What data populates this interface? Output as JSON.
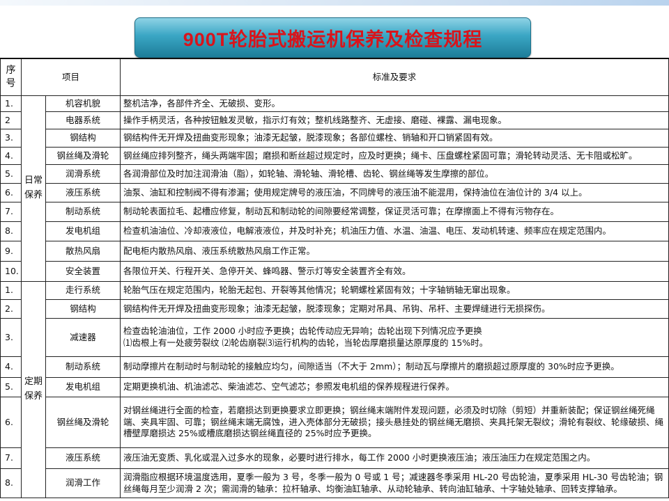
{
  "title": "900T轮胎式搬运机保养及检查规程",
  "header": {
    "seq": "序号",
    "item": "项目",
    "standard": "标准及要求"
  },
  "daily": {
    "category": "日常保养",
    "rows": [
      {
        "seq": "1.",
        "item": "机容机貌",
        "standard": "整机洁净，各部件齐全、无破损、变形。"
      },
      {
        "seq": "2",
        "item": "电器系统",
        "standard": "操作手柄灵活，各种按钮触发灵敏，指示灯有效；整机线路整齐、无虚接、磨碰、裸露、漏电现象。"
      },
      {
        "seq": "3.",
        "item": "钢结构",
        "standard": "钢结构件无开焊及扭曲变形现象；油漆无起皱，脱漆现象；各部位螺栓、销轴和开口销紧固有效。"
      },
      {
        "seq": "4.",
        "item": "钢丝绳及滑轮",
        "standard": "钢丝绳应排列整齐，绳头两端牢固；磨损和断丝超过规定时，应及时更换；绳卡、压盘螺栓紧固可靠；滑轮转动灵活、无卡阻或松旷。"
      },
      {
        "seq": "5.",
        "item": "润滑系统",
        "standard": "各润滑部位及时加注润滑油（脂），如轮轴、滑轮轴、滑轮槽、齿轮、钢丝绳等发生摩擦的部位。"
      },
      {
        "seq": "6.",
        "item": "液压系统",
        "standard": "油泵、油缸和控制阀不得有渗漏；使用规定牌号的液压油，不同牌号的液压油不能混用，保持油位在油位计的 3/4 以上。"
      },
      {
        "seq": "7.",
        "item": "制动系统",
        "standard": "制动轮表面拉毛、起槽应修复，制动瓦和制动轮的间隙要经常调整，保证灵活可靠；在摩擦面上不得有污物存在。"
      },
      {
        "seq": "8.",
        "item": "发电机组",
        "standard": "检查机油油位、冷却液液位，电解液液位，并及时补充；机油压力值、水温、油温、电压、发动机转速、频率应在规定范围内。"
      },
      {
        "seq": "9.",
        "item": "散热风扇",
        "standard": "配电柜内散热风扇、液压系统散热风扇工作正常。"
      },
      {
        "seq": "10.",
        "item": "安全装置",
        "standard": "各限位开关、行程开关、急停开关、蜂鸣器、警示灯等安全装置齐全有效。"
      }
    ]
  },
  "periodic": {
    "category": "定期保养",
    "rows": [
      {
        "seq": "1.",
        "item": "走行系统",
        "standard": "轮胎气压在规定范围内，轮胎无起包、开裂等其他情况；轮辋螺栓紧固有效；十字轴销轴无窜出现象。"
      },
      {
        "seq": "2.",
        "item": "钢结构",
        "standard": "钢结构件无开焊及扭曲变形现象；油漆无起皱，脱漆现象；定期对吊具、吊钩、吊杆、主要焊缝进行无损探伤。"
      },
      {
        "seq": "3.",
        "item": "减速器",
        "standard": "检查齿轮油油位，工作 2000 小时应予更换；齿轮传动应无异响；齿轮出现下列情况应予更换",
        "standard2": "⑴齿根上有一处疲劳裂纹 ⑵轮齿崩裂⑶运行机构的齿轮，当轮齿厚磨损量达原厚度的 15%时。"
      },
      {
        "seq": "4.",
        "item": "制动系统",
        "standard": "制动摩擦片在制动时与制动轮的接触应均匀，间隙适当（不大于 2mm）；制动瓦与摩擦片的磨损超过原厚度的 30%时应予更换。"
      },
      {
        "seq": "5.",
        "item": "发电机组",
        "standard": "定期更换机油、机油滤芯、柴油滤芯、空气滤芯；参照发电机组的保养规程进行保养。"
      },
      {
        "seq": "6.",
        "item": "钢丝绳及滑轮",
        "standard": "对钢丝绳进行全面的检查，若磨损达到更换要求立即更换；钢丝绳末端附件发现问题，必须及时切除（剪短）并重新装配；保证钢丝绳死绳端、夹具牢固、可靠；钢丝绳末端无腐蚀，进入壳体部分无破损；接头悬挂处的钢丝绳无磨损、夹具托架无裂纹；滑轮有裂纹、轮缘破损、绳槽壁厚磨损达 25%或槽底磨损达钢丝绳直径的 25%时应予更换。"
      },
      {
        "seq": "7.",
        "item": "液压系统",
        "standard": "液压油无变质、乳化或混入过多水的现象，必要时进行排水，每工作 2000 小时更换液压油；液压油压力在规定范围之内。"
      },
      {
        "seq": "8.",
        "item": "润滑工作",
        "standard": "润滑脂应根据环境温度选用，夏季一般为 3 号，冬季一般为 0 号或 1 号；减速器冬季采用 HL-20 号齿轮油，夏季采用 HL-30 号齿轮油；钢丝绳每月至少润滑 2 次；需润滑的轴承：拉杆轴承、均衡油缸轴承、从动轮轴承、转向油缸轴承、十字轴处轴承、回转支撑轴承。"
      }
    ]
  },
  "colors": {
    "title_text": "#d9141b",
    "banner": "#2b94b3"
  }
}
